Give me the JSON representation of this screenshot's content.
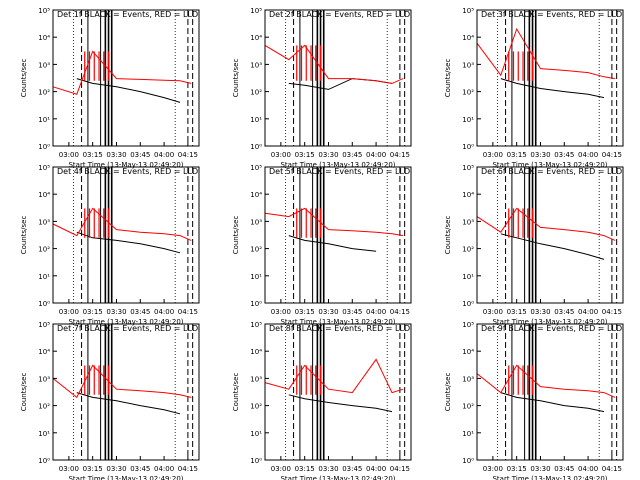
{
  "colors": {
    "events": "#000000",
    "lld": "#ff0000",
    "axes": "#000000",
    "background": "#ffffff"
  },
  "shared": {
    "xlabel": "Start Time (13-May-13 02:49:20)",
    "ylabel": "Counts/sec",
    "x_ticks": [
      "03:00",
      "03:15",
      "03:30",
      "03:45",
      "04:00",
      "04:15"
    ],
    "y_ticks": [
      "10⁰",
      "10¹",
      "10²",
      "10³",
      "10⁴",
      "10⁵"
    ],
    "legend_text": "BLACK = Events, RED = LLD"
  },
  "chart_data": [
    {
      "type": "line",
      "title": "Det 1f BLACK = Events, RED = LLD",
      "xlabel": "Start Time (13-May-13 02:49:20)",
      "ylabel": "Counts/sec",
      "x": [
        "02:50",
        "03:05",
        "03:15",
        "03:30",
        "03:45",
        "04:00",
        "04:10",
        "04:17"
      ],
      "series": [
        {
          "name": "Events",
          "values": [
            null,
            300,
            200,
            150,
            100,
            60,
            40,
            null
          ]
        },
        {
          "name": "LLD",
          "values": [
            150,
            80,
            3000,
            300,
            280,
            260,
            250,
            200
          ]
        }
      ],
      "ylim": [
        1,
        100000
      ],
      "yscale": "log",
      "grid": false
    },
    {
      "type": "line",
      "title": "Det 2f BLACK = Events, RED = LLD",
      "xlabel": "Start Time (13-May-13 02:49:20)",
      "ylabel": "Counts/sec",
      "x": [
        "02:50",
        "03:05",
        "03:15",
        "03:30",
        "03:45",
        "04:00",
        "04:10",
        "04:17"
      ],
      "series": [
        {
          "name": "Events",
          "values": [
            null,
            200,
            170,
            120,
            300,
            250,
            200,
            null
          ]
        },
        {
          "name": "LLD",
          "values": [
            5000,
            1500,
            5000,
            300,
            300,
            250,
            200,
            300
          ]
        }
      ],
      "ylim": [
        1,
        100000
      ],
      "yscale": "log",
      "grid": false
    },
    {
      "type": "line",
      "title": "Det 3f BLACK = Events, RED = LLD",
      "xlabel": "Start Time (13-May-13 02:49:20)",
      "ylabel": "Counts/sec",
      "x": [
        "02:50",
        "03:05",
        "03:15",
        "03:30",
        "03:45",
        "04:00",
        "04:10",
        "04:17"
      ],
      "series": [
        {
          "name": "Events",
          "values": [
            null,
            300,
            200,
            130,
            100,
            80,
            60,
            null
          ]
        },
        {
          "name": "LLD",
          "values": [
            6000,
            400,
            20000,
            700,
            600,
            500,
            350,
            300
          ]
        }
      ],
      "ylim": [
        1,
        100000
      ],
      "yscale": "log",
      "grid": false
    },
    {
      "type": "line",
      "title": "Det 4f BLACK = Events, RED = LLD",
      "xlabel": "Start Time (13-May-13 02:49:20)",
      "ylabel": "Counts/sec",
      "x": [
        "02:50",
        "03:05",
        "03:15",
        "03:30",
        "03:45",
        "04:00",
        "04:10",
        "04:17"
      ],
      "series": [
        {
          "name": "Events",
          "values": [
            null,
            400,
            250,
            200,
            150,
            100,
            70,
            null
          ]
        },
        {
          "name": "LLD",
          "values": [
            800,
            300,
            3000,
            500,
            400,
            350,
            300,
            200
          ]
        }
      ],
      "ylim": [
        1,
        100000
      ],
      "yscale": "log",
      "grid": false
    },
    {
      "type": "line",
      "title": "Det 5f BLACK = Events, RED = LLD",
      "xlabel": "Start Time (13-May-13 02:49:20)",
      "ylabel": "Counts/sec",
      "x": [
        "02:50",
        "03:05",
        "03:15",
        "03:30",
        "03:45",
        "04:00",
        "04:10",
        "04:17"
      ],
      "series": [
        {
          "name": "Events",
          "values": [
            null,
            300,
            200,
            150,
            100,
            80,
            null,
            null
          ]
        },
        {
          "name": "LLD",
          "values": [
            2000,
            1500,
            3000,
            500,
            450,
            400,
            350,
            300
          ]
        }
      ],
      "ylim": [
        1,
        100000
      ],
      "yscale": "log",
      "grid": false
    },
    {
      "type": "line",
      "title": "Det 6f BLACK = Events, RED = LLD",
      "xlabel": "Start Time (13-May-13 02:49:20)",
      "ylabel": "Counts/sec",
      "x": [
        "02:50",
        "03:05",
        "03:15",
        "03:30",
        "03:45",
        "04:00",
        "04:10",
        "04:17"
      ],
      "series": [
        {
          "name": "Events",
          "values": [
            null,
            350,
            250,
            150,
            100,
            60,
            40,
            null
          ]
        },
        {
          "name": "LLD",
          "values": [
            1500,
            400,
            3000,
            600,
            500,
            400,
            300,
            200
          ]
        }
      ],
      "ylim": [
        1,
        100000
      ],
      "yscale": "log",
      "grid": false
    },
    {
      "type": "line",
      "title": "Det 7f BLACK = Events, RED = LLD",
      "xlabel": "Start Time (13-May-13 02:49:20)",
      "ylabel": "Counts/sec",
      "x": [
        "02:50",
        "03:05",
        "03:15",
        "03:30",
        "03:45",
        "04:00",
        "04:10",
        "04:17"
      ],
      "series": [
        {
          "name": "Events",
          "values": [
            null,
            300,
            200,
            150,
            100,
            70,
            50,
            null
          ]
        },
        {
          "name": "LLD",
          "values": [
            1000,
            200,
            3000,
            400,
            350,
            300,
            250,
            200
          ]
        }
      ],
      "ylim": [
        1,
        100000
      ],
      "yscale": "log",
      "grid": false
    },
    {
      "type": "line",
      "title": "Det 8f BLACK = Events, RED = LLD",
      "xlabel": "Start Time (13-May-13 02:49:20)",
      "ylabel": "Counts/sec",
      "x": [
        "02:50",
        "03:05",
        "03:15",
        "03:30",
        "03:45",
        "04:00",
        "04:10",
        "04:17"
      ],
      "series": [
        {
          "name": "Events",
          "values": [
            null,
            250,
            180,
            130,
            100,
            80,
            60,
            null
          ]
        },
        {
          "name": "LLD",
          "values": [
            700,
            400,
            3000,
            400,
            300,
            5000,
            300,
            400
          ]
        }
      ],
      "ylim": [
        1,
        100000
      ],
      "yscale": "log",
      "grid": false
    },
    {
      "type": "line",
      "title": "Det 9f BLACK = Events, RED = LLD",
      "xlabel": "Start Time (13-May-13 02:49:20)",
      "ylabel": "Counts/sec",
      "x": [
        "02:50",
        "03:05",
        "03:15",
        "03:30",
        "03:45",
        "04:00",
        "04:10",
        "04:17"
      ],
      "series": [
        {
          "name": "Events",
          "values": [
            null,
            300,
            200,
            150,
            100,
            80,
            60,
            null
          ]
        },
        {
          "name": "LLD",
          "values": [
            1500,
            300,
            3000,
            500,
            400,
            350,
            300,
            200
          ]
        }
      ],
      "ylim": [
        1,
        100000
      ],
      "yscale": "log",
      "grid": false
    }
  ]
}
